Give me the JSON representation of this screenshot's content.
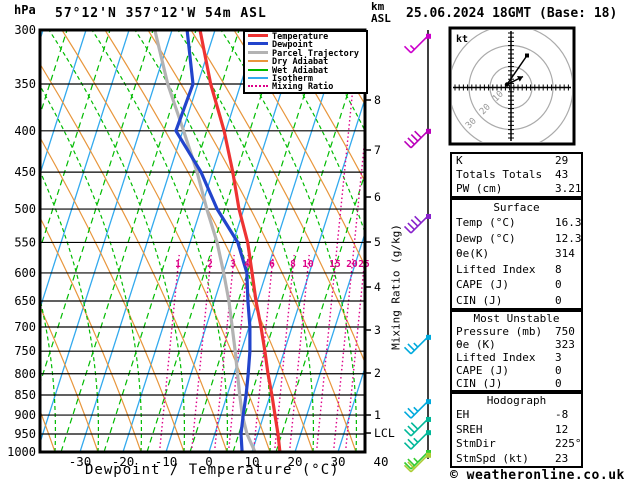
{
  "header": {
    "title": "57°12'N 357°12'W 54m ASL",
    "datetime": "25.06.2024 18GMT (Base: 18)"
  },
  "axes": {
    "pressure_unit": "hPa",
    "altitude_unit_line1": "km",
    "altitude_unit_line2": "ASL",
    "pressure_ticks": [
      300,
      350,
      400,
      450,
      500,
      550,
      600,
      650,
      700,
      750,
      800,
      850,
      900,
      950,
      1000
    ],
    "temp_ticks": [
      -30,
      -20,
      -10,
      0,
      10,
      20,
      30,
      40
    ],
    "km_ticks": [
      8,
      7,
      6,
      5,
      4,
      3,
      2,
      1
    ],
    "lcl_label": "LCL",
    "x_label": "Dewpoint / Temperature (°C)",
    "mixing_axis_label": "Mixing Ratio (g/kg)",
    "mixing_ratio_labels": [
      1,
      2,
      3,
      4,
      6,
      8,
      10,
      15,
      20,
      25
    ]
  },
  "legend": {
    "items": [
      {
        "label": "Temperature",
        "color": "#ee3333",
        "style": "solid",
        "weight": 3
      },
      {
        "label": "Dewpoint",
        "color": "#2244cc",
        "style": "solid",
        "weight": 3
      },
      {
        "label": "Parcel Trajectory",
        "color": "#b3b3b3",
        "style": "solid",
        "weight": 3
      },
      {
        "label": "Dry Adiabat",
        "color": "#e8963c",
        "style": "solid",
        "weight": 2
      },
      {
        "label": "Wet Adiabat",
        "color": "#00bb00",
        "style": "solid",
        "weight": 2
      },
      {
        "label": "Isotherm",
        "color": "#33aaee",
        "style": "solid",
        "weight": 2
      },
      {
        "label": "Mixing Ratio",
        "color": "#dd0088",
        "style": "dotted",
        "weight": 2
      }
    ]
  },
  "hodograph": {
    "unit_label": "kt",
    "ring_labels": [
      10,
      20,
      30
    ],
    "vectors": [
      {
        "dx": 20,
        "dy": -29,
        "end": "dot"
      },
      {
        "dx": 16,
        "dy": -8,
        "end": "arrow"
      }
    ]
  },
  "stats": {
    "sections": [
      {
        "header": "",
        "rows": [
          [
            "K",
            "29"
          ],
          [
            "Totals Totals",
            "43"
          ],
          [
            "PW (cm)",
            "3.21"
          ]
        ]
      },
      {
        "header": "Surface",
        "rows": [
          [
            "Temp (°C)",
            "16.3"
          ],
          [
            "Dewp (°C)",
            "12.3"
          ],
          [
            "θe(K)",
            "314"
          ],
          [
            "Lifted Index",
            "8"
          ],
          [
            "CAPE (J)",
            "0"
          ],
          [
            "CIN (J)",
            "0"
          ]
        ]
      },
      {
        "header": "Most Unstable",
        "rows": [
          [
            "Pressure (mb)",
            "750"
          ],
          [
            "θe (K)",
            "323"
          ],
          [
            "Lifted Index",
            "3"
          ],
          [
            "CAPE (J)",
            "0"
          ],
          [
            "CIN (J)",
            "0"
          ]
        ]
      },
      {
        "header": "Hodograph",
        "rows": [
          [
            "EH",
            "-8"
          ],
          [
            "SREH",
            "12"
          ],
          [
            "StmDir",
            "225°"
          ],
          [
            "StmSpd (kt)",
            "23"
          ]
        ]
      }
    ]
  },
  "watermark": "© weatheronline.co.uk",
  "chart_data": {
    "type": "skewt_log_p",
    "title": "57°12'N 357°12'W 54m ASL",
    "xlabel": "Dewpoint / Temperature (°C)",
    "xlim_c": [
      -40,
      40
    ],
    "pressure_range_hpa": [
      300,
      1000
    ],
    "pressure_levels_hpa": [
      300,
      350,
      400,
      450,
      500,
      550,
      600,
      650,
      700,
      750,
      800,
      850,
      900,
      950,
      1000
    ],
    "series": [
      {
        "name": "Temperature",
        "color": "#ee3333",
        "values_c": [
          -33.5,
          -27.0,
          -20.4,
          -15.3,
          -11.1,
          -6.6,
          -3.3,
          -0.3,
          2.8,
          5.5,
          7.9,
          10.4,
          12.6,
          14.7,
          16.5
        ]
      },
      {
        "name": "Dewpoint",
        "color": "#2244cc",
        "values_c": [
          -36.5,
          -31.1,
          -31.6,
          -22.7,
          -16.2,
          -8.9,
          -4.5,
          -2.2,
          0.2,
          2.0,
          3.3,
          4.4,
          5.2,
          6.1,
          7.7
        ]
      },
      {
        "name": "Parcel Trajectory",
        "color": "#b3b3b3",
        "values_c": [
          -44.0,
          -37.0,
          -29.8,
          -23.6,
          -18.6,
          -13.7,
          -9.9,
          -6.6,
          -3.9,
          -1.4,
          0.8,
          2.9,
          5.0,
          7.5,
          10.7
        ]
      }
    ],
    "wind_barbs": [
      {
        "p_hpa": 305,
        "color": "#cc00cc",
        "full": 1,
        "half": 1
      },
      {
        "p_hpa": 400,
        "color": "#bb00bb",
        "full": 4,
        "half": 0
      },
      {
        "p_hpa": 510,
        "color": "#8822cc",
        "full": 4,
        "half": 0
      },
      {
        "p_hpa": 720,
        "color": "#00aadd",
        "full": 2,
        "half": 1
      },
      {
        "p_hpa": 865,
        "color": "#00aadd",
        "full": 2,
        "half": 1
      },
      {
        "p_hpa": 910,
        "color": "#00b899",
        "full": 3,
        "half": 0
      },
      {
        "p_hpa": 945,
        "color": "#00b899",
        "full": 2,
        "half": 1
      },
      {
        "p_hpa": 1000,
        "color": "#33cc33",
        "full": 2,
        "half": 1
      },
      {
        "p_hpa": 1008,
        "color": "#aacc33",
        "full": 2,
        "half": 0
      }
    ],
    "background_line_colors": {
      "isotherm": "#33aaee",
      "dry_adiabat": "#e8963c",
      "wet_adiabat": "#00bb00",
      "mixing_ratio": "#dd0088"
    },
    "lcl_pressure_hpa": 950
  }
}
